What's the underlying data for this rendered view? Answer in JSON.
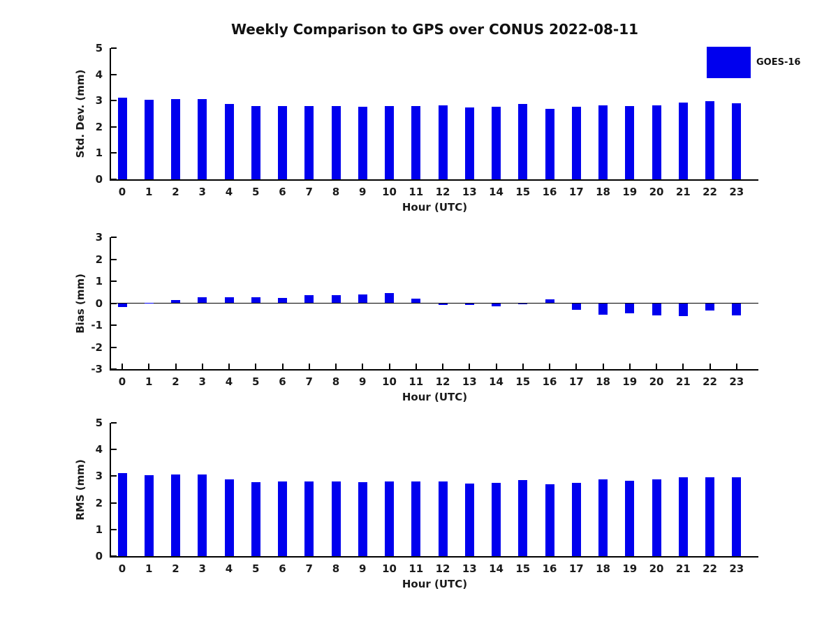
{
  "title": "Weekly Comparison to GPS over CONUS 2022-08-11",
  "legend": {
    "label": "GOES-16",
    "color": "#0000EE",
    "position": "top-right"
  },
  "colors": {
    "bar": "#0000EE",
    "axis": "#000000",
    "text": "#1a1a1a",
    "background": "#FFFFFF"
  },
  "chart_data": [
    {
      "type": "bar",
      "panel": "std-dev",
      "ylabel": "Std. Dev. (mm)",
      "xlabel": "Hour (UTC)",
      "ylim": [
        0,
        5
      ],
      "yticks": [
        0,
        1,
        2,
        3,
        4,
        5
      ],
      "grid": false,
      "categories": [
        0,
        1,
        2,
        3,
        4,
        5,
        6,
        7,
        8,
        9,
        10,
        11,
        12,
        13,
        14,
        15,
        16,
        17,
        18,
        19,
        20,
        21,
        22,
        23
      ],
      "series": [
        {
          "name": "GOES-16",
          "values": [
            3.11,
            3.04,
            3.05,
            3.06,
            2.88,
            2.78,
            2.8,
            2.8,
            2.8,
            2.77,
            2.78,
            2.8,
            2.82,
            2.75,
            2.76,
            2.88,
            2.69,
            2.76,
            2.82,
            2.8,
            2.82,
            2.92,
            2.98,
            2.9
          ]
        }
      ]
    },
    {
      "type": "bar",
      "panel": "bias",
      "ylabel": "Bias (mm)",
      "xlabel": "Hour (UTC)",
      "ylim": [
        -3,
        3
      ],
      "yticks": [
        3,
        2,
        1,
        0,
        -1,
        -2,
        -3
      ],
      "grid": false,
      "categories": [
        0,
        1,
        2,
        3,
        4,
        5,
        6,
        7,
        8,
        9,
        10,
        11,
        12,
        13,
        14,
        15,
        16,
        17,
        18,
        19,
        20,
        21,
        22,
        23
      ],
      "series": [
        {
          "name": "GOES-16",
          "values": [
            -0.18,
            0.02,
            0.15,
            0.27,
            0.27,
            0.26,
            0.24,
            0.36,
            0.37,
            0.41,
            0.45,
            0.21,
            -0.08,
            -0.07,
            -0.14,
            -0.05,
            0.18,
            -0.3,
            -0.53,
            -0.45,
            -0.55,
            -0.58,
            -0.32,
            -0.55
          ]
        }
      ]
    },
    {
      "type": "bar",
      "panel": "rms",
      "ylabel": "RMS (mm)",
      "xlabel": "Hour (UTC)",
      "ylim": [
        0,
        5
      ],
      "yticks": [
        0,
        1,
        2,
        3,
        4,
        5
      ],
      "grid": false,
      "categories": [
        0,
        1,
        2,
        3,
        4,
        5,
        6,
        7,
        8,
        9,
        10,
        11,
        12,
        13,
        14,
        15,
        16,
        17,
        18,
        19,
        20,
        21,
        22,
        23
      ],
      "series": [
        {
          "name": "GOES-16",
          "values": [
            3.12,
            3.04,
            3.05,
            3.07,
            2.88,
            2.78,
            2.79,
            2.81,
            2.81,
            2.78,
            2.8,
            2.8,
            2.81,
            2.73,
            2.76,
            2.86,
            2.7,
            2.75,
            2.88,
            2.83,
            2.87,
            2.97,
            2.97,
            2.95
          ]
        }
      ]
    }
  ]
}
